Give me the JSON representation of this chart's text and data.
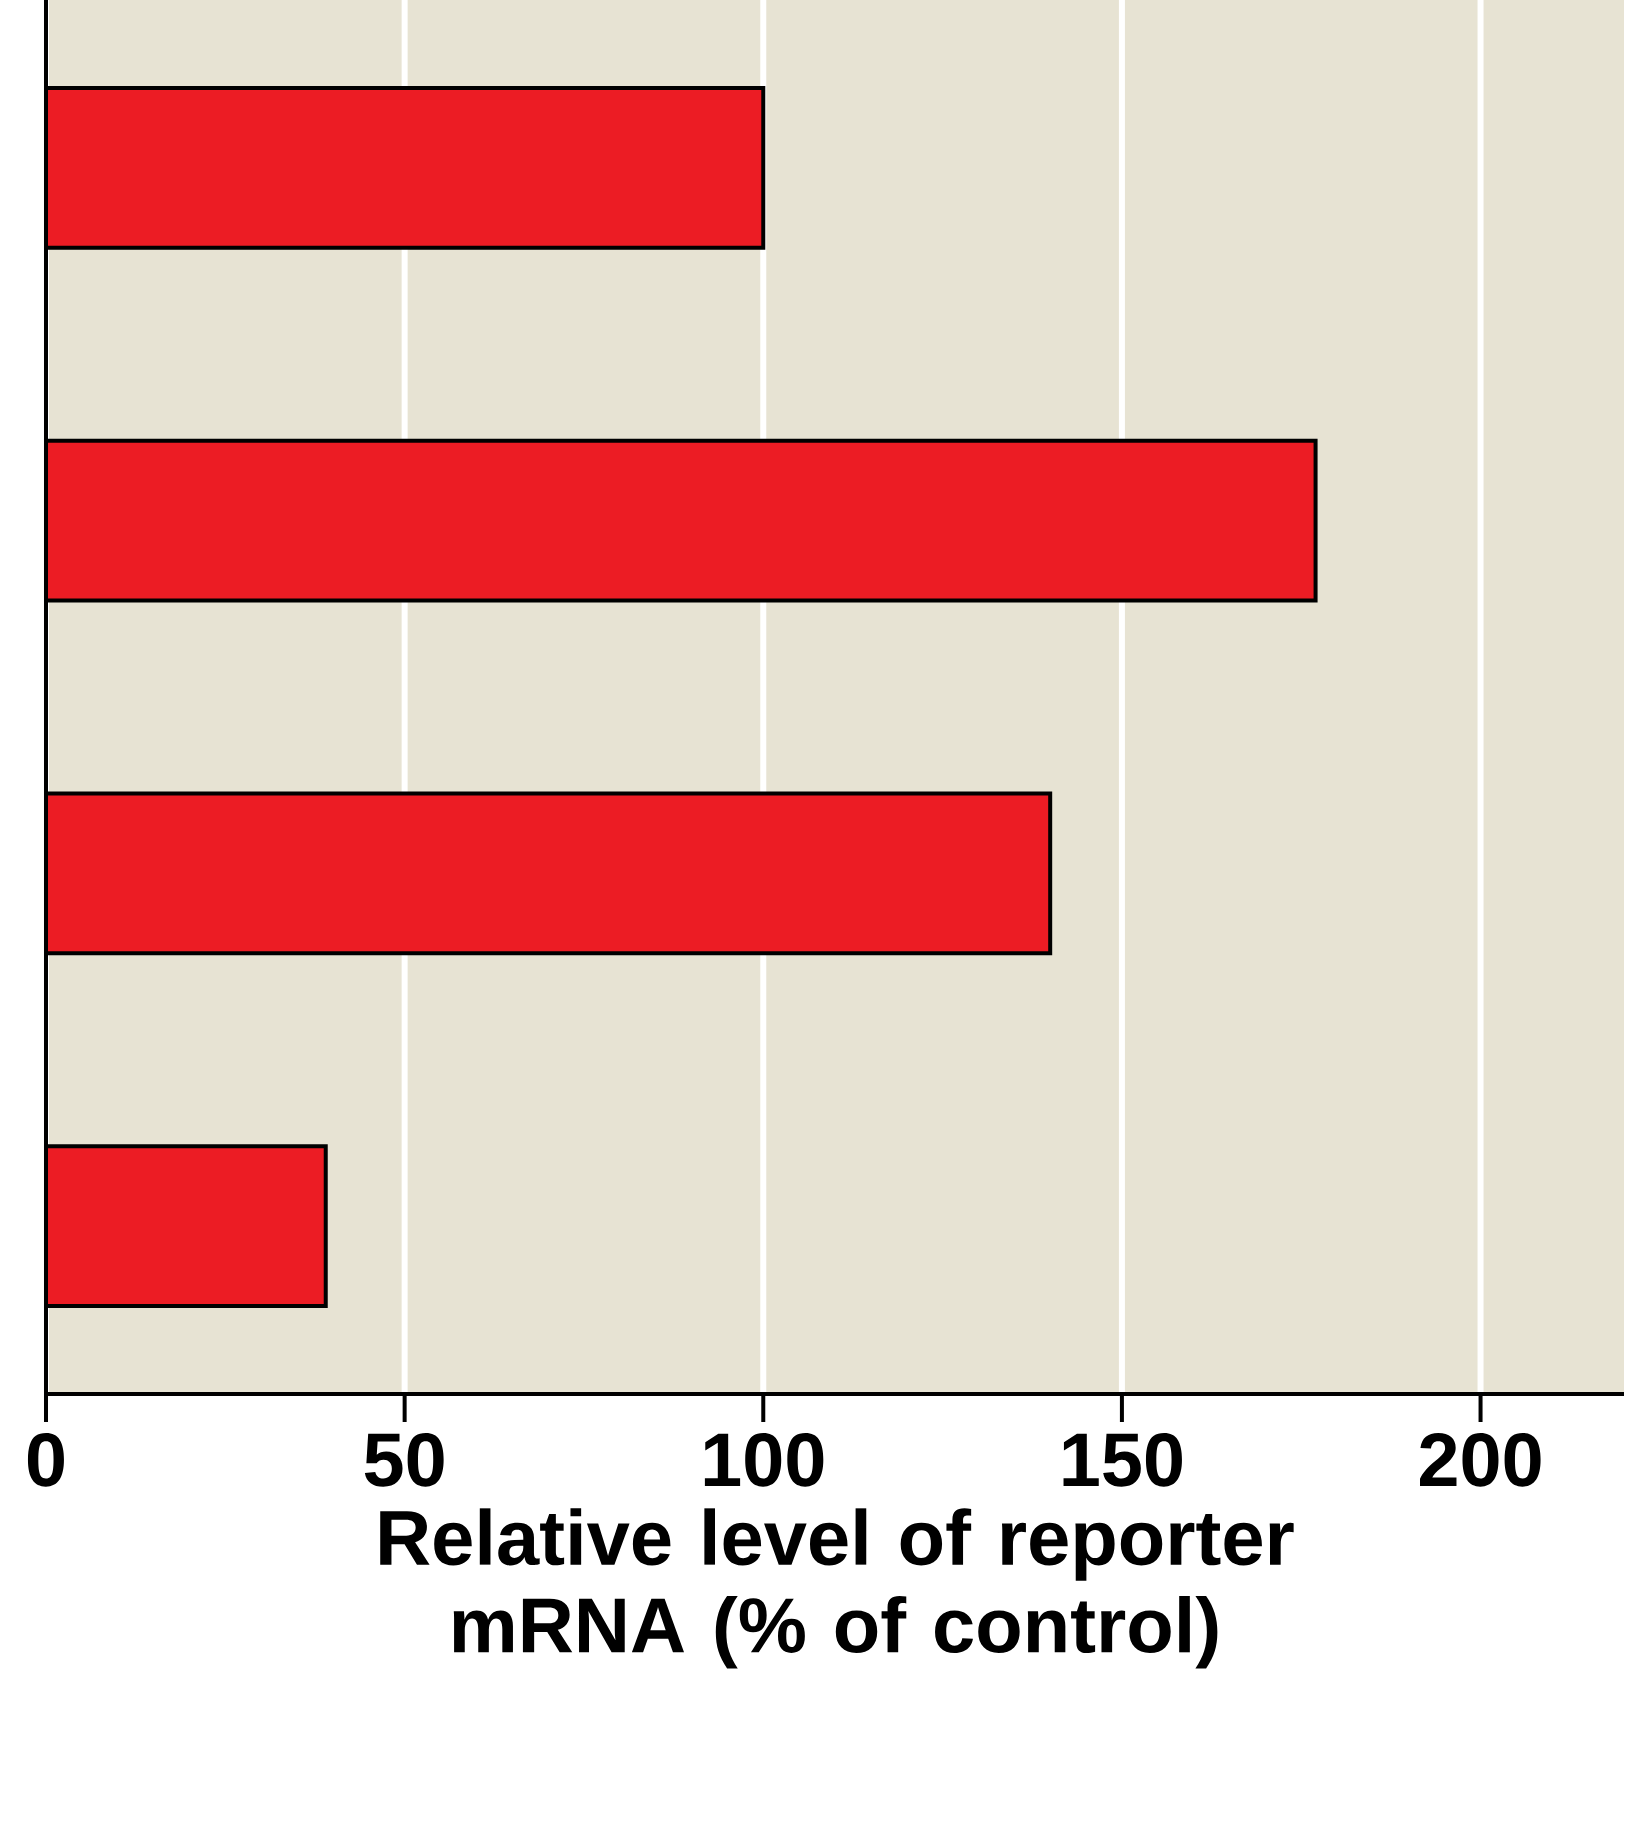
{
  "chart_data": {
    "type": "bar",
    "orientation": "horizontal",
    "categories": [
      null,
      null,
      null,
      null
    ],
    "values": [
      100,
      177,
      140,
      39
    ],
    "color": "#ec1c24",
    "xlim": [
      0,
      220
    ],
    "xticks": [
      0,
      50,
      100,
      150,
      200
    ],
    "grid": "x",
    "xlabel": "Relative level of reporter mRNA (% of control)"
  }
}
